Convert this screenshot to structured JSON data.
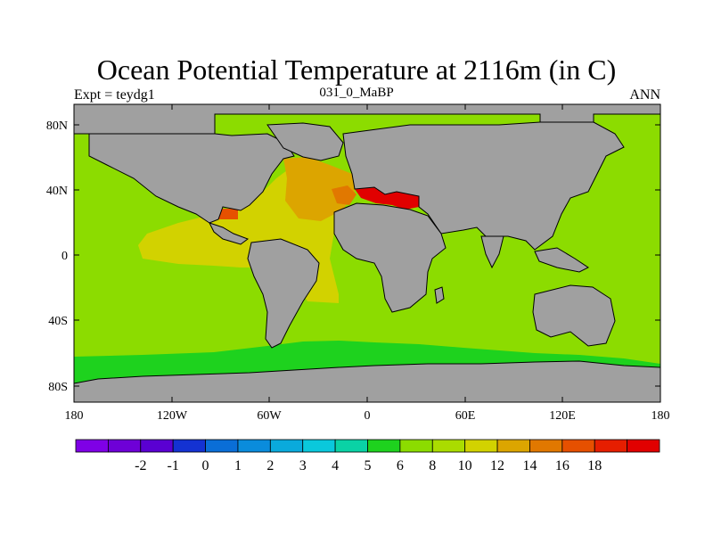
{
  "title": "Ocean Potential Temperature at 2116m (in C)",
  "left_label": "Expt = teydg1",
  "center_label": "031_0_MaBP",
  "right_label": "ANN",
  "lat_ticks": [
    "80N",
    "40N",
    "0",
    "40S",
    "80S"
  ],
  "lon_ticks": [
    "180",
    "120W",
    "60W",
    "0",
    "60E",
    "120E",
    "180"
  ],
  "colorbar": {
    "colors": [
      "#7f00e6",
      "#6e00d7",
      "#5a00d2",
      "#1432d2",
      "#0a6ed7",
      "#0a8cdc",
      "#0aaadc",
      "#0ac8dc",
      "#0ad2a5",
      "#1ed21e",
      "#8cdc00",
      "#aadc00",
      "#d2d200",
      "#dca500",
      "#e17800",
      "#e65000",
      "#e61e00",
      "#e10000"
    ],
    "labels": [
      "-2",
      "-1",
      "0",
      "1",
      "2",
      "3",
      "4",
      "5",
      "6",
      "8",
      "10",
      "12",
      "14",
      "16",
      "18"
    ]
  },
  "legend_colors": {
    "land": "#a0a0a0",
    "ocean_10": "#8cdc00",
    "ocean_8": "#1ed21e",
    "ocean_12": "#d2d200",
    "ocean_14": "#dca500",
    "ocean_16": "#e17800",
    "ocean_18": "#e10000"
  }
}
